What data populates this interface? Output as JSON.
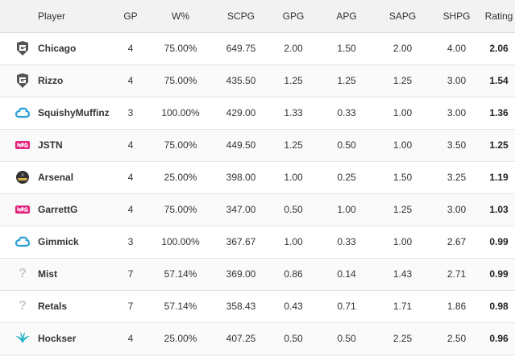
{
  "table": {
    "headers": [
      "Player",
      "GP",
      "W%",
      "SCPG",
      "GPG",
      "APG",
      "SAPG",
      "SHPG",
      "Rating"
    ],
    "rows": [
      {
        "logo": "g2-team-logo",
        "player": "Chicago",
        "gp": "4",
        "wpct": "75.00%",
        "scpg": "649.75",
        "gpg": "2.00",
        "apg": "1.50",
        "sapg": "2.00",
        "shpg": "4.00",
        "rating": "2.06"
      },
      {
        "logo": "g2-team-logo",
        "player": "Rizzo",
        "gp": "4",
        "wpct": "75.00%",
        "scpg": "435.50",
        "gpg": "1.25",
        "apg": "1.25",
        "sapg": "1.25",
        "shpg": "3.00",
        "rating": "1.54"
      },
      {
        "logo": "cloud9-team-logo",
        "player": "SquishyMuffinz",
        "gp": "3",
        "wpct": "100.00%",
        "scpg": "429.00",
        "gpg": "1.33",
        "apg": "0.33",
        "sapg": "1.00",
        "shpg": "3.00",
        "rating": "1.36"
      },
      {
        "logo": "nrg-team-logo",
        "player": "JSTN",
        "gp": "4",
        "wpct": "75.00%",
        "scpg": "449.50",
        "gpg": "1.25",
        "apg": "0.50",
        "sapg": "1.00",
        "shpg": "3.50",
        "rating": "1.25"
      },
      {
        "logo": "helmet-team-logo",
        "player": "Arsenal",
        "gp": "4",
        "wpct": "25.00%",
        "scpg": "398.00",
        "gpg": "1.00",
        "apg": "0.25",
        "sapg": "1.50",
        "shpg": "3.25",
        "rating": "1.19"
      },
      {
        "logo": "nrg-team-logo",
        "player": "GarrettG",
        "gp": "4",
        "wpct": "75.00%",
        "scpg": "347.00",
        "gpg": "0.50",
        "apg": "1.00",
        "sapg": "1.25",
        "shpg": "3.00",
        "rating": "1.03"
      },
      {
        "logo": "cloud9-team-logo",
        "player": "Gimmick",
        "gp": "3",
        "wpct": "100.00%",
        "scpg": "367.67",
        "gpg": "1.00",
        "apg": "0.33",
        "sapg": "1.00",
        "shpg": "2.67",
        "rating": "0.99"
      },
      {
        "logo": "unknown-team-logo",
        "player": "Mist",
        "gp": "7",
        "wpct": "57.14%",
        "scpg": "369.00",
        "gpg": "0.86",
        "apg": "0.14",
        "sapg": "1.43",
        "shpg": "2.71",
        "rating": "0.99"
      },
      {
        "logo": "unknown-team-logo",
        "player": "Retals",
        "gp": "7",
        "wpct": "57.14%",
        "scpg": "358.43",
        "gpg": "0.43",
        "apg": "0.71",
        "sapg": "1.71",
        "shpg": "1.86",
        "rating": "0.98"
      },
      {
        "logo": "wings-team-logo",
        "player": "Hockser",
        "gp": "4",
        "wpct": "25.00%",
        "scpg": "407.25",
        "gpg": "0.50",
        "apg": "0.50",
        "sapg": "2.25",
        "shpg": "2.50",
        "rating": "0.96"
      }
    ]
  },
  "colors": {
    "header_bg": "#f2f2f2",
    "row_border": "#e3e3e3",
    "cloud9_blue": "#2a9fd8",
    "nrg_pink": "#e3207b",
    "wings_teal": "#2bb5c9"
  },
  "unknown_glyph": "?"
}
